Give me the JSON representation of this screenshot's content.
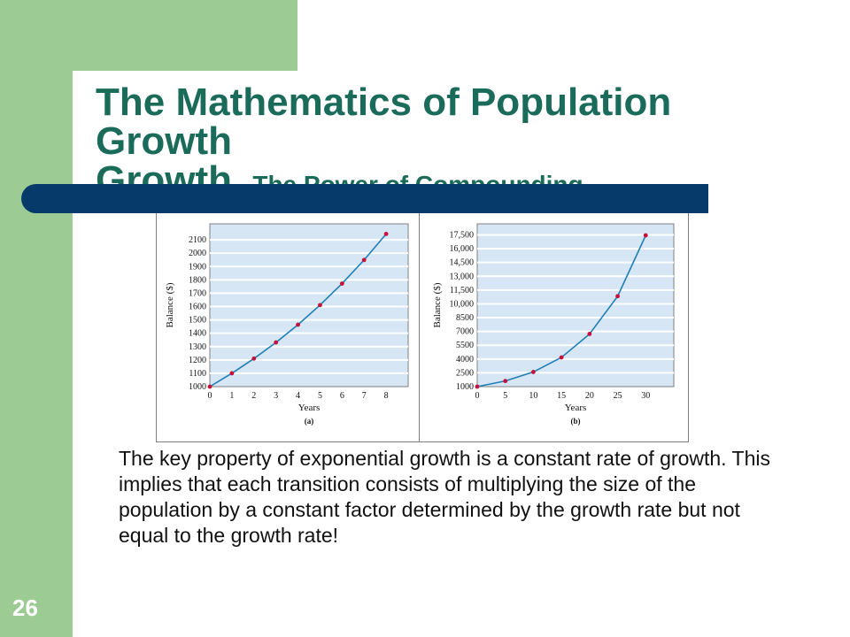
{
  "slide": {
    "title_main": "The Mathematics of Population Growth",
    "title_sub": "– The Power of Compounding",
    "body": "The key property of exponential growth is a constant rate of growth.  This implies that each transition consists of multiplying the size of the population by a constant factor determined by the growth rate but not equal to the growth rate!",
    "slide_number": "26"
  },
  "colors": {
    "green": "#9dcb94",
    "navy": "#053a6b",
    "title": "#1a6b5a",
    "plot_bg": "#d6e6f5",
    "line": "#1f7fb6",
    "marker": "#c8103a"
  },
  "chart_data": [
    {
      "type": "line",
      "panel_label": "(a)",
      "xlabel": "Years",
      "ylabel": "Balance ($)",
      "x": [
        0,
        1,
        2,
        3,
        4,
        5,
        6,
        7,
        8
      ],
      "series": [
        {
          "values": [
            1000,
            1100,
            1210,
            1331,
            1464,
            1611,
            1772,
            1949,
            2144
          ]
        }
      ],
      "x_ticks": [
        "0",
        "1",
        "2",
        "3",
        "4",
        "5",
        "6",
        "7",
        "8"
      ],
      "y_ticks": [
        {
          "value": 1000,
          "label": "1000"
        },
        {
          "value": 1100,
          "label": "1100"
        },
        {
          "value": 1200,
          "label": "1200"
        },
        {
          "value": 1300,
          "label": "1300"
        },
        {
          "value": 1400,
          "label": "1400"
        },
        {
          "value": 1500,
          "label": "1500"
        },
        {
          "value": 1600,
          "label": "1600"
        },
        {
          "value": 1700,
          "label": "1700"
        },
        {
          "value": 1800,
          "label": "1800"
        },
        {
          "value": 1900,
          "label": "1900"
        },
        {
          "value": 2000,
          "label": "2000"
        },
        {
          "value": 2100,
          "label": "2100"
        }
      ],
      "xlim": [
        0,
        9
      ],
      "ylim": [
        1000,
        2220
      ],
      "grid": "horizontal"
    },
    {
      "type": "line",
      "panel_label": "(b)",
      "xlabel": "Years",
      "ylabel": "Balance ($)",
      "x": [
        0,
        5,
        10,
        15,
        20,
        25,
        30
      ],
      "series": [
        {
          "values": [
            1000,
            1611,
            2594,
            4177,
            6728,
            10835,
            17449
          ]
        }
      ],
      "x_ticks": [
        "0",
        "5",
        "10",
        "15",
        "20",
        "25",
        "30"
      ],
      "y_ticks": [
        {
          "value": 1000,
          "label": "1000"
        },
        {
          "value": 2500,
          "label": "2500"
        },
        {
          "value": 4000,
          "label": "4000"
        },
        {
          "value": 5500,
          "label": "5500"
        },
        {
          "value": 7000,
          "label": "7000"
        },
        {
          "value": 8500,
          "label": "8500"
        },
        {
          "value": 10000,
          "label": "10,000"
        },
        {
          "value": 11500,
          "label": "11,500"
        },
        {
          "value": 13000,
          "label": "13,000"
        },
        {
          "value": 14500,
          "label": "14,500"
        },
        {
          "value": 16000,
          "label": "16,000"
        },
        {
          "value": 17500,
          "label": "17,500"
        }
      ],
      "xlim": [
        0,
        35
      ],
      "ylim": [
        1000,
        18700
      ],
      "grid": "horizontal"
    }
  ]
}
